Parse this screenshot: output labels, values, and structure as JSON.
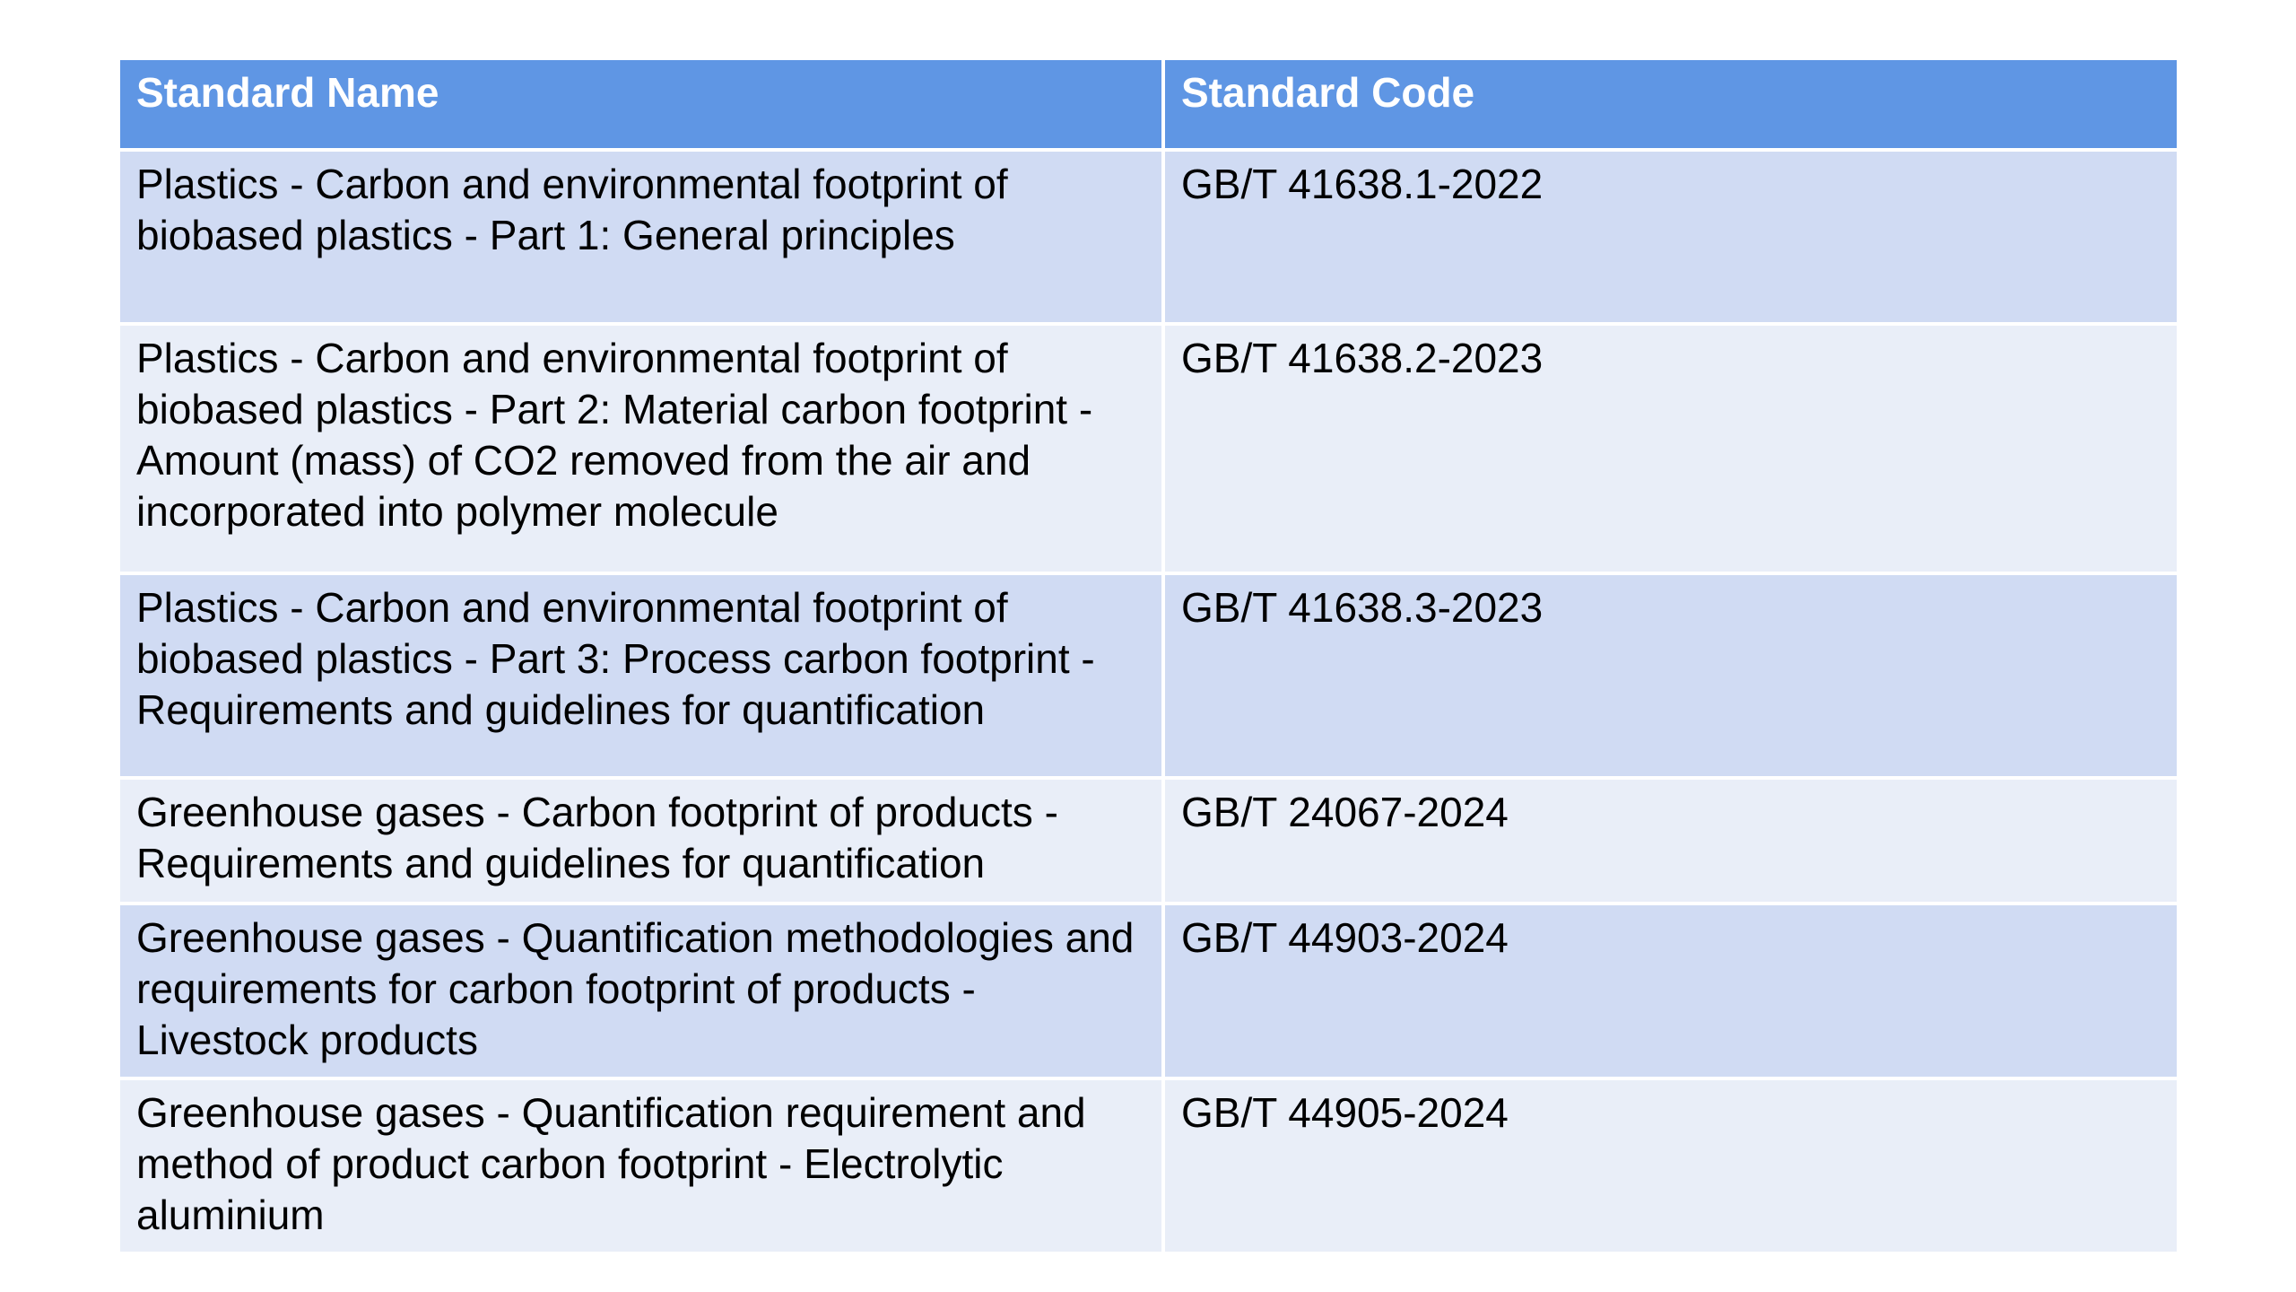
{
  "table": {
    "headers": [
      "Standard Name",
      "Standard Code"
    ],
    "rows": [
      {
        "name": "Plastics - Carbon and environmental footprint of biobased plastics - Part 1: General principles",
        "code": "GB/T 41638.1-2022"
      },
      {
        "name": "Plastics - Carbon and environmental footprint of biobased plastics - Part 2: Material carbon footprint - Amount (mass) of CO2 removed from the air and incorporated into polymer molecule",
        "code": "GB/T 41638.2-2023"
      },
      {
        "name": "Plastics - Carbon and environmental footprint of biobased plastics - Part 3: Process carbon footprint - Requirements and guidelines for quantification",
        "code": "GB/T 41638.3-2023"
      },
      {
        "name": "Greenhouse gases - Carbon footprint of products - Requirements and guidelines for quantification",
        "code": "GB/T 24067-2024"
      },
      {
        "name": "Greenhouse gases - Quantification methodologies and requirements for carbon footprint of products - Livestock products",
        "code": "GB/T 44903-2024"
      },
      {
        "name": "Greenhouse gases - Quantification requirement and method of product carbon footprint - Electrolytic aluminium",
        "code": "GB/T 44905-2024"
      }
    ]
  },
  "colors": {
    "header_bg": "#5f96e4",
    "row_odd_bg": "#d0dbf3",
    "row_even_bg": "#e9eef8"
  }
}
